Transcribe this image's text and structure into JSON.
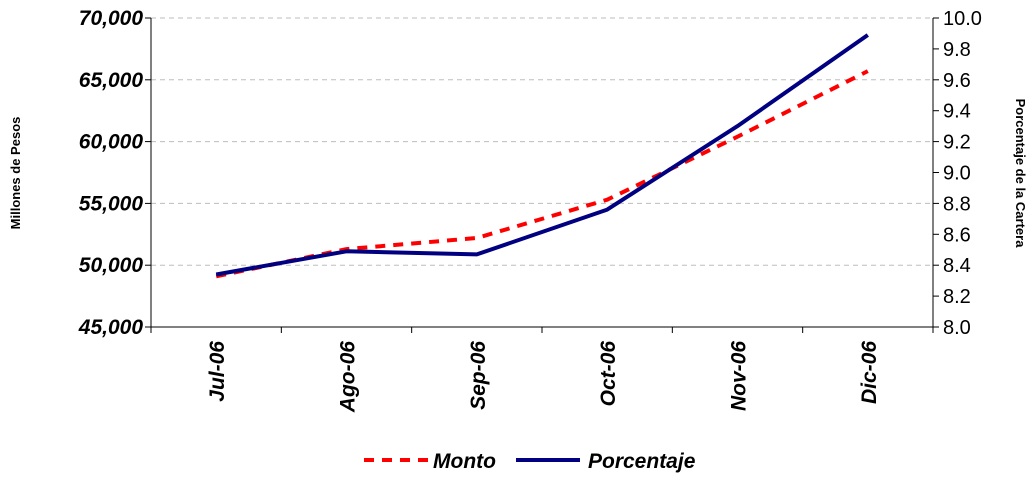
{
  "chart_data": {
    "type": "line",
    "categories": [
      "Jul-06",
      "Ago-06",
      "Sep-06",
      "Oct-06",
      "Nov-06",
      "Dic-06"
    ],
    "y_left": {
      "label": "Millones de Pesos",
      "range": [
        45000,
        70000
      ],
      "ticks": [
        "45,000",
        "50,000",
        "55,000",
        "60,000",
        "65,000",
        "70,000"
      ]
    },
    "y_right": {
      "label": "Porcentaje de la Cartera",
      "range": [
        8.0,
        10.0
      ],
      "ticks": [
        "8.0",
        "8.2",
        "8.4",
        "8.6",
        "8.8",
        "9.0",
        "9.2",
        "9.4",
        "9.6",
        "9.8",
        "10.0"
      ]
    },
    "series": [
      {
        "name": "Monto",
        "axis": "left",
        "style": "dashed",
        "color": "#ff0000",
        "values": [
          49100,
          51300,
          52200,
          55300,
          60400,
          65700
        ]
      },
      {
        "name": "Porcentaje",
        "axis": "right",
        "style": "solid",
        "color": "#000080",
        "values": [
          8.34,
          8.49,
          8.47,
          8.76,
          9.3,
          9.89
        ]
      }
    ],
    "grid": true,
    "legend_position": "bottom"
  }
}
